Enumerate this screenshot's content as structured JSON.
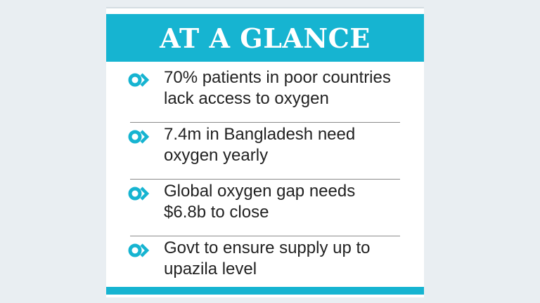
{
  "colors": {
    "accent": "#16b4d1",
    "background": "#e9eef2",
    "panel": "#ffffff",
    "text": "#222222"
  },
  "header": {
    "title": "AT A GLANCE"
  },
  "items": [
    {
      "line1": "70% patients in poor countries",
      "line2": "lack access to oxygen",
      "icon": "circle-chevron-right-icon"
    },
    {
      "line1": "7.4m in Bangladesh need",
      "line2": "oxygen yearly",
      "icon": "circle-chevron-right-icon"
    },
    {
      "line1": "Global oxygen gap needs",
      "line2": "$6.8b to close",
      "icon": "circle-chevron-right-icon"
    },
    {
      "line1": "Govt to ensure supply up to",
      "line2": "upazila level",
      "icon": "circle-chevron-right-icon"
    }
  ]
}
